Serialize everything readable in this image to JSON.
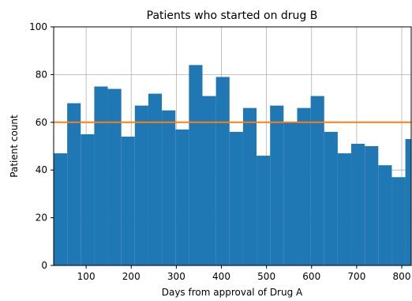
{
  "chart_data": {
    "type": "bar",
    "title": "Patients who started on drug B",
    "xlabel": "Days from approval of Drug A",
    "ylabel": "Patient count",
    "xlim": [
      28,
      821
    ],
    "ylim": [
      0,
      100
    ],
    "x_ticks": [
      100,
      200,
      300,
      400,
      500,
      600,
      700,
      800
    ],
    "y_ticks": [
      0,
      20,
      40,
      60,
      80,
      100
    ],
    "grid": true,
    "bar_color": "#1f77b4",
    "line_color": "#ff7f0e",
    "bin_width": 30,
    "bin_starts": [
      28,
      58,
      88,
      118,
      148,
      178,
      208,
      238,
      268,
      298,
      328,
      358,
      388,
      418,
      448,
      478,
      508,
      538,
      568,
      598,
      628,
      658,
      688,
      718,
      748,
      778,
      808
    ],
    "values": [
      47,
      68,
      55,
      75,
      74,
      54,
      67,
      72,
      65,
      57,
      84,
      71,
      79,
      56,
      66,
      46,
      67,
      60,
      66,
      71,
      56,
      47,
      51,
      50,
      42,
      37,
      53
    ],
    "reference_line": {
      "y": 60
    }
  }
}
